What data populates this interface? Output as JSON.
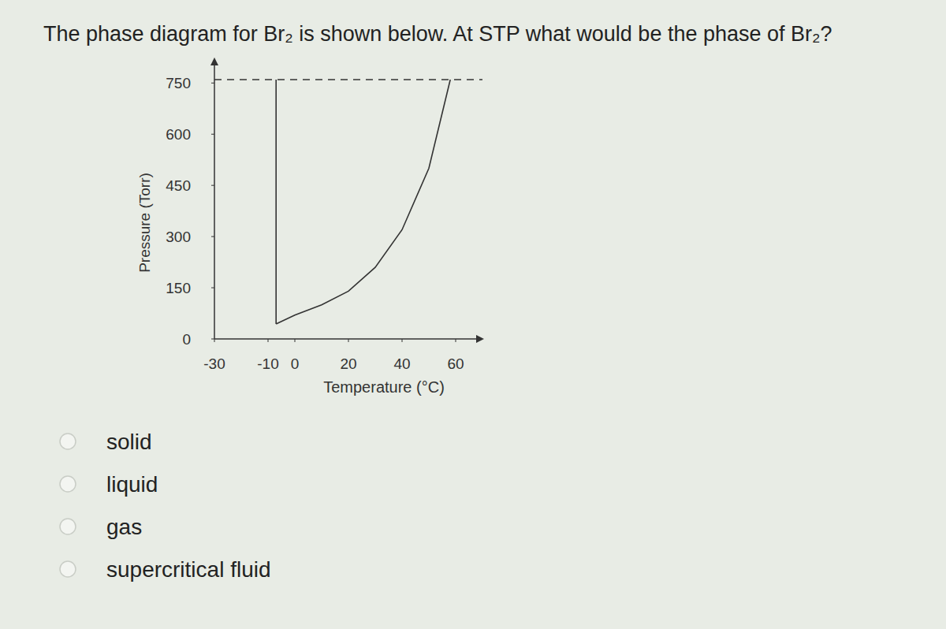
{
  "question": "The phase diagram for Br₂ is shown below. At STP what would be the phase of Br₂?",
  "options": [
    "solid",
    "liquid",
    "gas",
    "supercritical fluid"
  ],
  "chart_data": {
    "type": "line",
    "xlabel": "Temperature (°C)",
    "ylabel": "Pressure (Torr)",
    "xlim": [
      -30,
      70
    ],
    "ylim": [
      0,
      820
    ],
    "xticks": [
      -30,
      -10,
      0,
      20,
      40,
      60
    ],
    "yticks": [
      0,
      150,
      300,
      450,
      600,
      750
    ],
    "grid": false,
    "series": [
      {
        "color": "#333333",
        "line_style": "solid",
        "x": [
          -7,
          -7
        ],
        "values": [
          44,
          760
        ]
      },
      {
        "color": "#333333",
        "line_style": "solid",
        "x": [
          -7,
          0,
          10,
          20,
          30,
          40,
          50,
          58
        ],
        "values": [
          44,
          70,
          100,
          140,
          210,
          320,
          500,
          760
        ]
      },
      {
        "color": "#333333",
        "line_style": "dashed",
        "x": [
          -30,
          70
        ],
        "values": [
          760,
          760
        ]
      }
    ]
  }
}
